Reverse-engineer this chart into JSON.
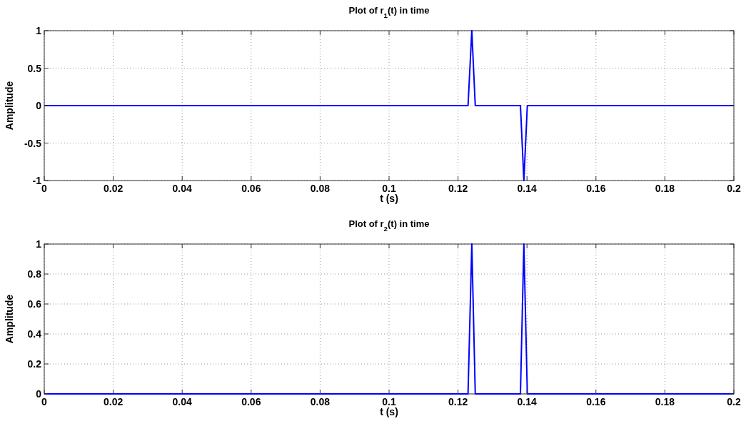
{
  "chart_data": [
    {
      "type": "line",
      "title": "Plot of r$_{1}$(t) in time",
      "xlabel": "t (s)",
      "ylabel": "Amplitude",
      "series": [
        {
          "color": "#0000ff",
          "x": [
            0,
            0.1229,
            0.124,
            0.125,
            0.1381,
            0.1391,
            0.1401,
            0.2
          ],
          "values": [
            0,
            0,
            1,
            0,
            0,
            -1,
            0,
            0
          ]
        }
      ],
      "xlim": [
        0,
        0.2
      ],
      "xticks": [
        0,
        0.02,
        0.04,
        0.06,
        0.08,
        0.1,
        0.12,
        0.14,
        0.16,
        0.18,
        0.2
      ],
      "ylim": [
        -1,
        1
      ],
      "yticks": [
        -1,
        -0.5,
        0,
        0.5,
        1
      ],
      "grid": true,
      "line_style": "solid"
    },
    {
      "type": "line",
      "title": "Plot of r$_{2}$(t) in time",
      "xlabel": "t (s)",
      "ylabel": "Amplitude",
      "series": [
        {
          "color": "#0000ff",
          "x": [
            0,
            0.1229,
            0.124,
            0.125,
            0.1381,
            0.1391,
            0.1401,
            0.2
          ],
          "values": [
            0,
            0,
            1,
            0,
            0,
            1,
            0,
            0
          ]
        }
      ],
      "xlim": [
        0,
        0.2
      ],
      "xticks": [
        0,
        0.02,
        0.04,
        0.06,
        0.08,
        0.1,
        0.12,
        0.14,
        0.16,
        0.18,
        0.2
      ],
      "ylim": [
        0,
        1
      ],
      "yticks": [
        0,
        0.2,
        0.4,
        0.6,
        0.8,
        1
      ],
      "grid": true,
      "line_style": "solid"
    }
  ]
}
